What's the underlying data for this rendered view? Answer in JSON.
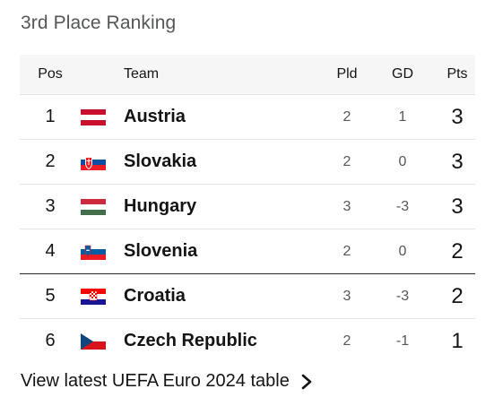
{
  "title": "3rd Place Ranking",
  "headers": {
    "pos": "Pos",
    "team": "Team",
    "pld": "Pld",
    "gd": "GD",
    "pts": "Pts"
  },
  "rows": [
    {
      "pos": "1",
      "team": "Austria",
      "pld": "2",
      "gd": "1",
      "pts": "3",
      "flag": "austria-flag-icon"
    },
    {
      "pos": "2",
      "team": "Slovakia",
      "pld": "2",
      "gd": "0",
      "pts": "3",
      "flag": "slovakia-flag-icon"
    },
    {
      "pos": "3",
      "team": "Hungary",
      "pld": "3",
      "gd": "-3",
      "pts": "3",
      "flag": "hungary-flag-icon"
    },
    {
      "pos": "4",
      "team": "Slovenia",
      "pld": "2",
      "gd": "0",
      "pts": "2",
      "flag": "slovenia-flag-icon"
    },
    {
      "pos": "5",
      "team": "Croatia",
      "pld": "3",
      "gd": "-3",
      "pts": "2",
      "flag": "croatia-flag-icon"
    },
    {
      "pos": "6",
      "team": "Czech Republic",
      "pld": "2",
      "gd": "-1",
      "pts": "1",
      "flag": "czech-republic-flag-icon"
    }
  ],
  "footer_link": "View latest UEFA Euro 2024 table",
  "colors": {
    "header_bg": "#f6f6f6",
    "title": "#545658",
    "separator": "#2a2a2a"
  }
}
